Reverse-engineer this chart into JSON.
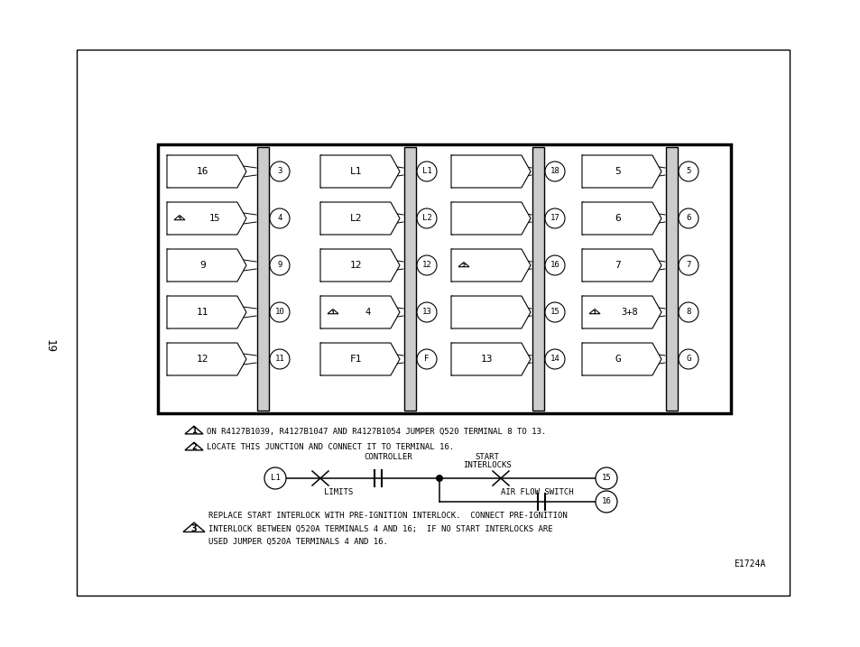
{
  "bg_color": "#ffffff",
  "page_number": "19",
  "diagram_note": "E1724A",
  "col1_rows": [
    {
      "label": "16",
      "terminal": "3",
      "has_triangle": false,
      "tri_num": ""
    },
    {
      "label": "15",
      "terminal": "4",
      "has_triangle": true,
      "tri_num": "3"
    },
    {
      "label": "9",
      "terminal": "9",
      "has_triangle": false,
      "tri_num": ""
    },
    {
      "label": "11",
      "terminal": "10",
      "has_triangle": false,
      "tri_num": ""
    },
    {
      "label": "12",
      "terminal": "11",
      "has_triangle": false,
      "tri_num": ""
    }
  ],
  "col2_rows": [
    {
      "label": "L1",
      "terminal": "L1",
      "has_triangle": false,
      "tri_num": ""
    },
    {
      "label": "L2",
      "terminal": "L2",
      "has_triangle": false,
      "tri_num": ""
    },
    {
      "label": "12",
      "terminal": "12",
      "has_triangle": false,
      "tri_num": ""
    },
    {
      "label": "4",
      "terminal": "13",
      "has_triangle": true,
      "tri_num": "1"
    },
    {
      "label": "F1",
      "terminal": "F",
      "has_triangle": false,
      "tri_num": ""
    }
  ],
  "col3_rows": [
    {
      "label": "",
      "terminal": "18",
      "has_triangle": false,
      "tri_num": ""
    },
    {
      "label": "",
      "terminal": "17",
      "has_triangle": false,
      "tri_num": ""
    },
    {
      "label": "",
      "terminal": "16",
      "has_triangle": true,
      "tri_num": "2"
    },
    {
      "label": "",
      "terminal": "15",
      "has_triangle": false,
      "tri_num": ""
    },
    {
      "label": "13",
      "terminal": "14",
      "has_triangle": false,
      "tri_num": ""
    }
  ],
  "col4_rows": [
    {
      "label": "5",
      "terminal": "5",
      "has_triangle": false,
      "tri_num": ""
    },
    {
      "label": "6",
      "terminal": "6",
      "has_triangle": false,
      "tri_num": ""
    },
    {
      "label": "7",
      "terminal": "7",
      "has_triangle": false,
      "tri_num": ""
    },
    {
      "label": "3+8",
      "terminal": "8",
      "has_triangle": true,
      "tri_num": "1"
    },
    {
      "label": "G",
      "terminal": "G",
      "has_triangle": false,
      "tri_num": ""
    }
  ],
  "note1_text": "ON R4127B1039, R4127B1047 AND R4127B1054 JUMPER Q520 TERMINAL 8 TO 13.",
  "note2_text": "LOCATE THIS JUNCTION AND CONNECT IT TO TERMINAL 16.",
  "note3_line1": "REPLACE START INTERLOCK WITH PRE-IGNITION INTERLOCK.  CONNECT PRE-IGNITION",
  "note3_line2": "INTERLOCK BETWEEN Q520A TERMINALS 4 AND 16;  IF NO START INTERLOCKS ARE",
  "note3_line3": "USED JUMPER Q520A TERMINALS 4 AND 16."
}
